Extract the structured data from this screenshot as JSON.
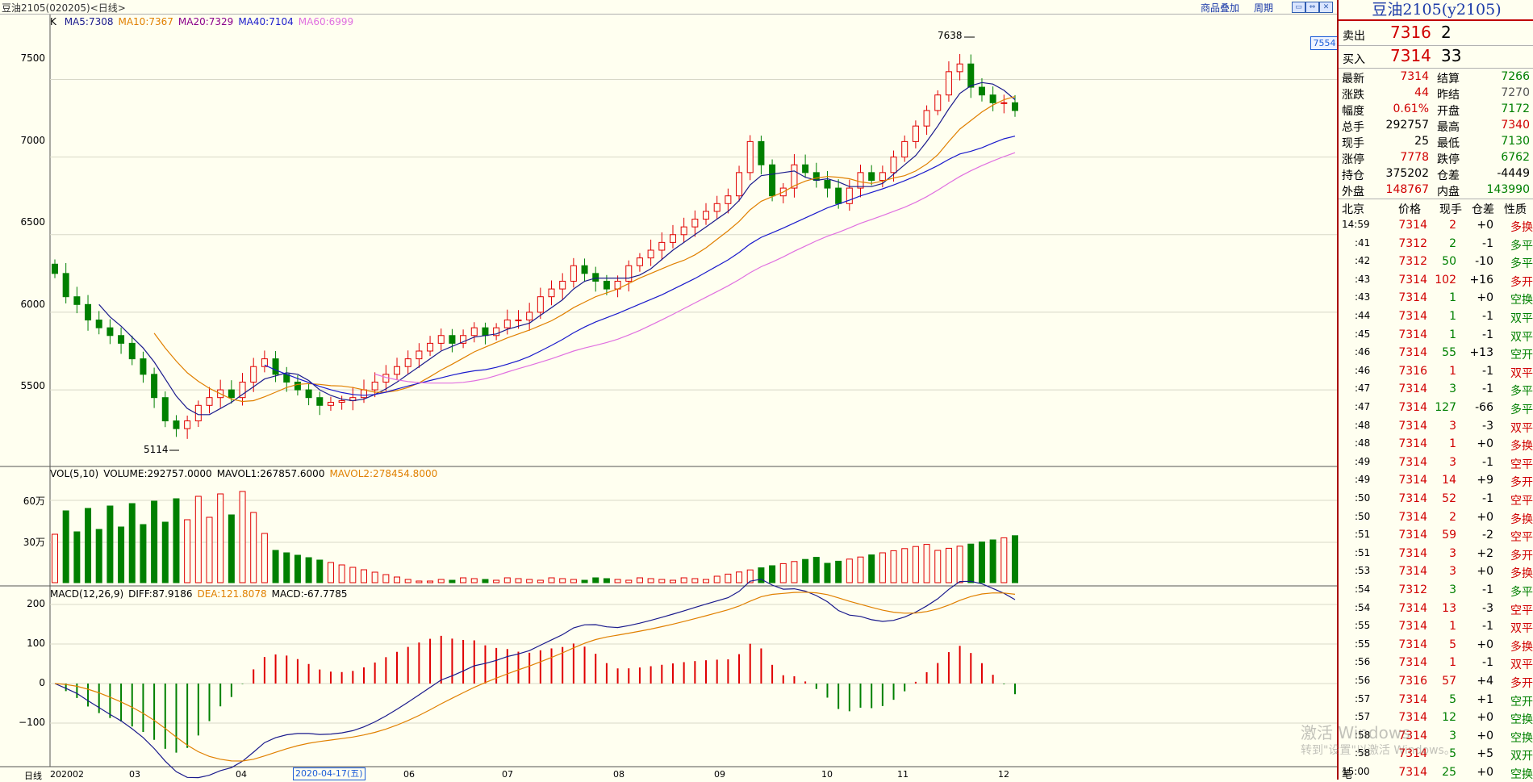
{
  "window": {
    "title": "豆油2105(020205)<日线>",
    "links": [
      "商品叠加",
      "周期"
    ],
    "buttons": [
      "▭",
      "⇔",
      "✕"
    ]
  },
  "kline": {
    "legend_prefix": "K",
    "ma": [
      {
        "label": "MA5:7308",
        "color": "#1a1a8c"
      },
      {
        "label": "MA10:7367",
        "color": "#e08000"
      },
      {
        "label": "MA20:7329",
        "color": "#8b008b"
      },
      {
        "label": "MA40:7104",
        "color": "#1a1acc"
      },
      {
        "label": "MA60:6999",
        "color": "#e070e0"
      }
    ],
    "high_mark": "7638",
    "low_mark": "5114",
    "current_price_tag": "7554",
    "y_ticks": [
      "7500",
      "7000",
      "6500",
      "6000",
      "5500"
    ]
  },
  "volume": {
    "legend": [
      {
        "label": "VOL(5,10)",
        "color": "#000000"
      },
      {
        "label": "VOLUME:292757.0000",
        "color": "#000000"
      },
      {
        "label": "MAVOL1:267857.6000",
        "color": "#000000"
      },
      {
        "label": "MAVOL2:278454.8000",
        "color": "#e08000"
      }
    ],
    "y_ticks": [
      "60万",
      "30万"
    ]
  },
  "macd": {
    "legend": [
      {
        "label": "MACD(12,26,9)",
        "color": "#000000"
      },
      {
        "label": "DIFF:87.9186",
        "color": "#000000"
      },
      {
        "label": "DEA:121.8078",
        "color": "#e08000"
      },
      {
        "label": "MACD:-67.7785",
        "color": "#000000"
      }
    ],
    "y_ticks": [
      "200",
      "100",
      "0",
      "−100"
    ]
  },
  "xaxis": {
    "period_label": "日线",
    "labels": [
      "202002",
      "03",
      "04",
      "06",
      "07",
      "08",
      "09",
      "10",
      "11",
      "12"
    ],
    "cursor_date": "2020-04-17(五)"
  },
  "chart_data": {
    "type": "candlestick",
    "title": "豆油2105(020205)<日线>",
    "ylim": [
      5100,
      7700
    ],
    "high_point": 7638,
    "low_point": 5114,
    "ma_current": {
      "MA5": 7308,
      "MA10": 7367,
      "MA20": 7329,
      "MA40": 7104,
      "MA60": 6999
    },
    "volume_current": {
      "VOLUME": 292757.0,
      "MAVOL1": 267857.6,
      "MAVOL2": 278454.8
    },
    "macd_current": {
      "DIFF": 87.9186,
      "DEA": 121.8078,
      "MACD": -67.7785
    },
    "close_trend": [
      6250,
      6100,
      6050,
      5950,
      5900,
      5850,
      5800,
      5700,
      5600,
      5450,
      5300,
      5250,
      5300,
      5400,
      5450,
      5500,
      5450,
      5550,
      5650,
      5700,
      5600,
      5550,
      5500,
      5450,
      5400,
      5420,
      5430,
      5450,
      5500,
      5550,
      5600,
      5650,
      5700,
      5750,
      5800,
      5850,
      5800,
      5850,
      5900,
      5850,
      5900,
      5950,
      5950,
      6000,
      6100,
      6150,
      6200,
      6300,
      6250,
      6200,
      6150,
      6200,
      6300,
      6350,
      6400,
      6450,
      6500,
      6550,
      6600,
      6650,
      6700,
      6750,
      6900,
      7100,
      6950,
      6750,
      6800,
      6950,
      6900,
      6850,
      6800,
      6700,
      6800,
      6900,
      6850,
      6900,
      7000,
      7100,
      7200,
      7300,
      7400,
      7550,
      7600,
      7450,
      7400,
      7350,
      7350,
      7300
    ]
  },
  "panel": {
    "title": "豆油2105(y2105)",
    "ask": {
      "label": "卖出",
      "price": "7316",
      "volume": "2"
    },
    "bid": {
      "label": "买入",
      "price": "7314",
      "volume": "33"
    },
    "stats": [
      {
        "l1": "最新",
        "v1": "7314",
        "c1": "#d00000",
        "l2": "结算",
        "v2": "7266",
        "c2": "#008000"
      },
      {
        "l1": "涨跌",
        "v1": "44",
        "c1": "#d00000",
        "l2": "昨结",
        "v2": "7270",
        "c2": "#555555"
      },
      {
        "l1": "幅度",
        "v1": "0.61%",
        "c1": "#d00000",
        "l2": "开盘",
        "v2": "7172",
        "c2": "#008000"
      },
      {
        "l1": "总手",
        "v1": "292757",
        "c1": "#000000",
        "l2": "最高",
        "v2": "7340",
        "c2": "#d00000"
      },
      {
        "l1": "现手",
        "v1": "25",
        "c1": "#000000",
        "l2": "最低",
        "v2": "7130",
        "c2": "#008000"
      },
      {
        "l1": "涨停",
        "v1": "7778",
        "c1": "#d00000",
        "l2": "跌停",
        "v2": "6762",
        "c2": "#008000"
      },
      {
        "l1": "持仓",
        "v1": "375202",
        "c1": "#000000",
        "l2": "仓差",
        "v2": "-4449",
        "c2": "#000000"
      },
      {
        "l1": "外盘",
        "v1": "148767",
        "c1": "#d00000",
        "l2": "内盘",
        "v2": "143990",
        "c2": "#008000"
      }
    ],
    "ticks_header": [
      "北京",
      "价格",
      "现手",
      "仓差",
      "性质"
    ],
    "ticks": [
      {
        "t": "14:59",
        "p": "7314",
        "v": "2",
        "d": "+0",
        "n": "多换",
        "nc": "#d00000"
      },
      {
        "t": ":41",
        "p": "7312",
        "v": "2",
        "d": "-1",
        "n": "多平",
        "nc": "#008000"
      },
      {
        "t": ":42",
        "p": "7312",
        "v": "50",
        "d": "-10",
        "n": "多平",
        "nc": "#008000"
      },
      {
        "t": ":43",
        "p": "7314",
        "v": "102",
        "d": "+16",
        "n": "多开",
        "nc": "#d00000"
      },
      {
        "t": ":43",
        "p": "7314",
        "v": "1",
        "d": "+0",
        "n": "空换",
        "nc": "#008000"
      },
      {
        "t": ":44",
        "p": "7314",
        "v": "1",
        "d": "-1",
        "n": "双平",
        "nc": "#008000"
      },
      {
        "t": ":45",
        "p": "7314",
        "v": "1",
        "d": "-1",
        "n": "双平",
        "nc": "#008000"
      },
      {
        "t": ":46",
        "p": "7314",
        "v": "55",
        "d": "+13",
        "n": "空开",
        "nc": "#008000"
      },
      {
        "t": ":46",
        "p": "7316",
        "v": "1",
        "d": "-1",
        "n": "双平",
        "nc": "#d00000"
      },
      {
        "t": ":47",
        "p": "7314",
        "v": "3",
        "d": "-1",
        "n": "多平",
        "nc": "#008000"
      },
      {
        "t": ":47",
        "p": "7314",
        "v": "127",
        "d": "-66",
        "n": "多平",
        "nc": "#008000"
      },
      {
        "t": ":48",
        "p": "7314",
        "v": "3",
        "d": "-3",
        "n": "双平",
        "nc": "#d00000"
      },
      {
        "t": ":48",
        "p": "7314",
        "v": "1",
        "d": "+0",
        "n": "多换",
        "nc": "#d00000"
      },
      {
        "t": ":49",
        "p": "7314",
        "v": "3",
        "d": "-1",
        "n": "空平",
        "nc": "#d00000"
      },
      {
        "t": ":49",
        "p": "7314",
        "v": "14",
        "d": "+9",
        "n": "多开",
        "nc": "#d00000"
      },
      {
        "t": ":50",
        "p": "7314",
        "v": "52",
        "d": "-1",
        "n": "空平",
        "nc": "#d00000"
      },
      {
        "t": ":50",
        "p": "7314",
        "v": "2",
        "d": "+0",
        "n": "多换",
        "nc": "#d00000"
      },
      {
        "t": ":51",
        "p": "7314",
        "v": "59",
        "d": "-2",
        "n": "空平",
        "nc": "#d00000"
      },
      {
        "t": ":51",
        "p": "7314",
        "v": "3",
        "d": "+2",
        "n": "多开",
        "nc": "#d00000"
      },
      {
        "t": ":53",
        "p": "7314",
        "v": "3",
        "d": "+0",
        "n": "多换",
        "nc": "#d00000"
      },
      {
        "t": ":54",
        "p": "7312",
        "v": "3",
        "d": "-1",
        "n": "多平",
        "nc": "#008000"
      },
      {
        "t": ":54",
        "p": "7314",
        "v": "13",
        "d": "-3",
        "n": "空平",
        "nc": "#d00000"
      },
      {
        "t": ":55",
        "p": "7314",
        "v": "1",
        "d": "-1",
        "n": "双平",
        "nc": "#d00000"
      },
      {
        "t": ":55",
        "p": "7314",
        "v": "5",
        "d": "+0",
        "n": "多换",
        "nc": "#d00000"
      },
      {
        "t": ":56",
        "p": "7314",
        "v": "1",
        "d": "-1",
        "n": "双平",
        "nc": "#d00000"
      },
      {
        "t": ":56",
        "p": "7316",
        "v": "57",
        "d": "+4",
        "n": "多开",
        "nc": "#d00000"
      },
      {
        "t": ":57",
        "p": "7314",
        "v": "5",
        "d": "+1",
        "n": "空开",
        "nc": "#008000"
      },
      {
        "t": ":57",
        "p": "7314",
        "v": "12",
        "d": "+0",
        "n": "空换",
        "nc": "#008000"
      },
      {
        "t": ":58",
        "p": "7314",
        "v": "3",
        "d": "+0",
        "n": "空换",
        "nc": "#008000"
      },
      {
        "t": ":58",
        "p": "7314",
        "v": "5",
        "d": "+5",
        "n": "双开",
        "nc": "#008000"
      },
      {
        "t": "15:00",
        "p": "7314",
        "v": "25",
        "d": "+0",
        "n": "空换",
        "nc": "#008000"
      }
    ],
    "footer": "笔"
  },
  "watermark": {
    "line1": "激活 Windows",
    "line2": "转到\"设置\"以激活 Windows。"
  }
}
